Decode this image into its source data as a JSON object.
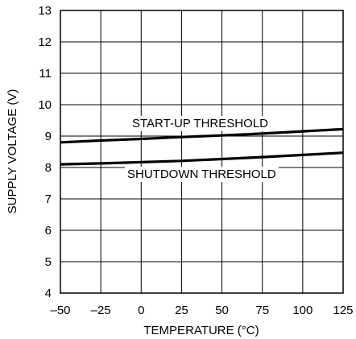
{
  "chart_data": {
    "type": "line",
    "title": "",
    "xlabel": "TEMPERATURE (°C)",
    "ylabel": "SUPPLY VOLTAGE (V)",
    "xlim": [
      -50,
      125
    ],
    "ylim": [
      4,
      13
    ],
    "x_ticks": [
      -50,
      -25,
      0,
      25,
      50,
      75,
      100,
      125
    ],
    "x_tick_labels": [
      "–50",
      "–25",
      "0",
      "25",
      "50",
      "75",
      "100",
      "125"
    ],
    "y_ticks": [
      4,
      5,
      6,
      7,
      8,
      9,
      10,
      11,
      12,
      13
    ],
    "y_tick_labels": [
      "4",
      "5",
      "6",
      "7",
      "8",
      "9",
      "10",
      "11",
      "12",
      "13"
    ],
    "grid": true,
    "legend": "none",
    "line_color": "#000000",
    "series": [
      {
        "name": "START-UP THRESHOLD",
        "x": [
          -50,
          -25,
          0,
          25,
          50,
          75,
          100,
          125
        ],
        "y": [
          8.8,
          8.86,
          8.91,
          8.97,
          9.02,
          9.08,
          9.15,
          9.22
        ]
      },
      {
        "name": "SHUTDOWN THRESHOLD",
        "x": [
          -50,
          -25,
          0,
          25,
          50,
          75,
          100,
          125
        ],
        "y": [
          8.1,
          8.13,
          8.17,
          8.21,
          8.27,
          8.33,
          8.4,
          8.47
        ]
      }
    ]
  }
}
